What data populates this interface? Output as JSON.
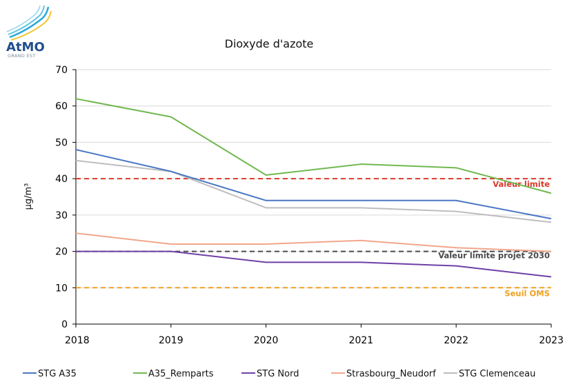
{
  "logo": {
    "brand": "AtMO",
    "sub": "GRAND EST"
  },
  "chart_data": {
    "type": "line",
    "title": "Dioxyde d'azote",
    "xlabel": "",
    "ylabel": "µg/m³",
    "x": [
      "2018",
      "2019",
      "2020",
      "2021",
      "2022",
      "2023"
    ],
    "yticks": [
      "0",
      "10",
      "20",
      "30",
      "40",
      "50",
      "60",
      "70"
    ],
    "ylim": [
      0,
      70
    ],
    "grid": true,
    "legend_position": "bottom",
    "series": [
      {
        "name": "STG A35",
        "color": "#4a77c4",
        "values": [
          48,
          42,
          34,
          34,
          34,
          29
        ]
      },
      {
        "name": "A35_Remparts",
        "color": "#70b84e",
        "values": [
          62,
          57,
          41,
          44,
          43,
          36
        ]
      },
      {
        "name": "STG Nord",
        "color": "#6e3fa6",
        "values": [
          20,
          20,
          17,
          17,
          16,
          13
        ]
      },
      {
        "name": "Strasbourg_Neudorf",
        "color": "#f2a58a",
        "values": [
          25,
          22,
          22,
          23,
          21,
          20
        ]
      },
      {
        "name": "STG Clemenceau",
        "color": "#bdbdbd",
        "values": [
          45,
          42,
          32,
          32,
          31,
          28
        ]
      }
    ],
    "reference_lines": [
      {
        "label": "Valeur limite",
        "value": 40,
        "color": "#d83a2b"
      },
      {
        "label": "Valeur limite projet 2030",
        "value": 20,
        "color": "#4a4a4a"
      },
      {
        "label": "Seuil OMS",
        "value": 10,
        "color": "#f0a020"
      }
    ]
  }
}
